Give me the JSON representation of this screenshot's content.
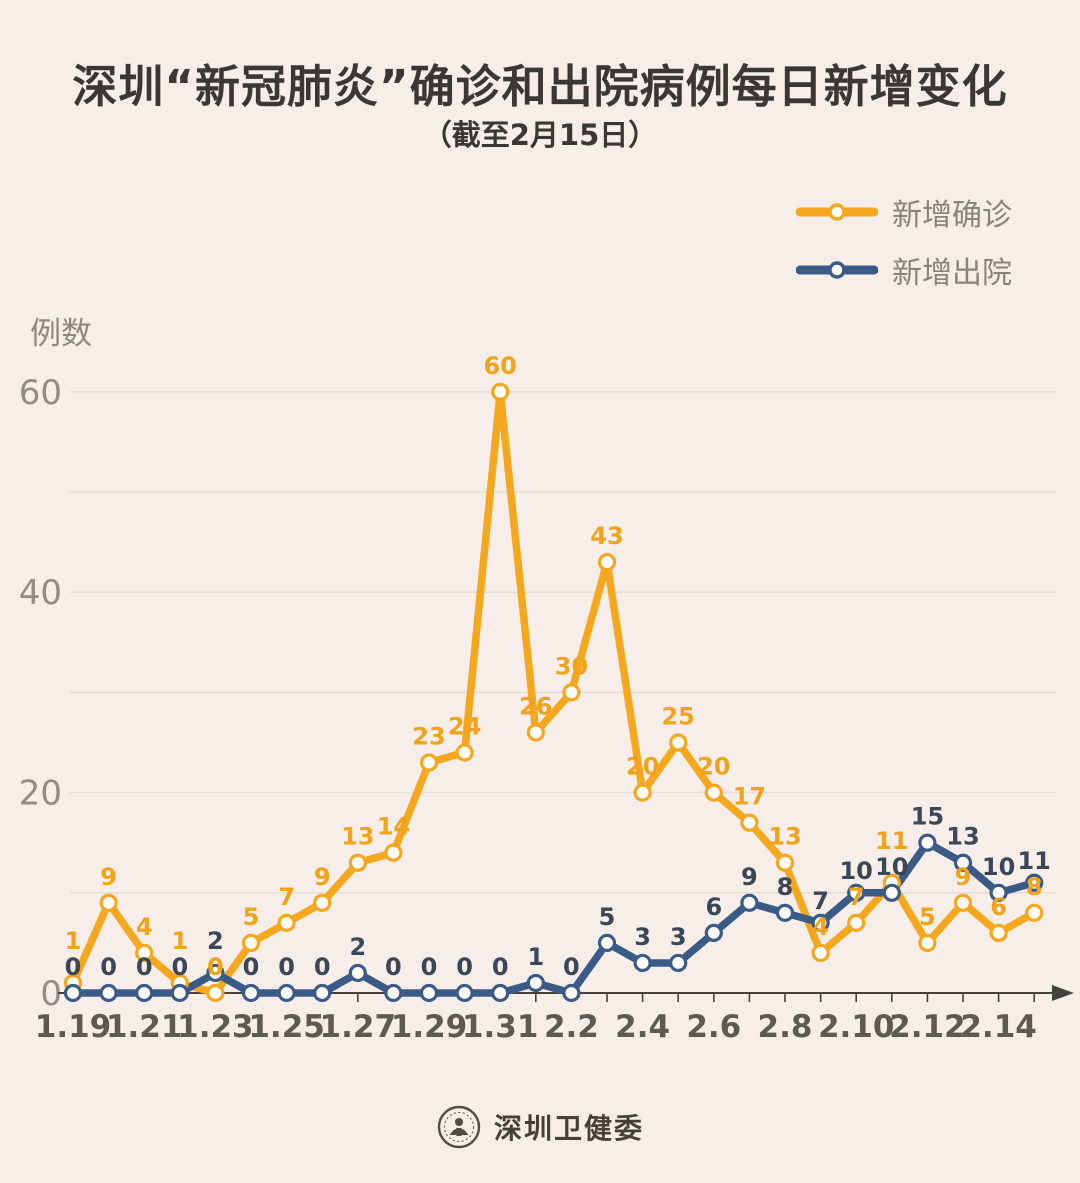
{
  "title": "深圳“新冠肺炎”确诊和出院病例每日新增变化",
  "subtitle": "（截至2月15日）",
  "y_axis_title": "例数",
  "legend": [
    {
      "label": "新增确诊",
      "color": "#f5a71e"
    },
    {
      "label": "新增出院",
      "color": "#3a5a88"
    }
  ],
  "footer": {
    "org_name": "深圳卫健委"
  },
  "colors": {
    "background": "#f7eee9",
    "grid": "#e7ddd6",
    "axis_line": "#45403b",
    "y_tick_text": "#938b84",
    "x_tick_text": "#5f5954",
    "confirmed": "#f5a71e",
    "confirmed_label": "#f2a31c",
    "discharged": "#3a5a88",
    "discharged_label": "#3b4657",
    "marker_fill": "#fffdf8"
  },
  "chart_data": {
    "type": "line",
    "title": "深圳“新冠肺炎”确诊和出院病例每日新增变化",
    "subtitle": "（截至2月15日）",
    "ylabel": "例数",
    "xlabel": "",
    "ylim": [
      0,
      60
    ],
    "yticks": [
      0,
      20,
      40,
      60
    ],
    "grid_step": 10,
    "grid": true,
    "legend_position": "top-right",
    "x_labels_every": 2,
    "categories": [
      "1.19",
      "1.20",
      "1.21",
      "1.22",
      "1.23",
      "1.24",
      "1.25",
      "1.26",
      "1.27",
      "1.28",
      "1.29",
      "1.30",
      "1.31",
      "2.1",
      "2.2",
      "2.3",
      "2.4",
      "2.5",
      "2.6",
      "2.7",
      "2.8",
      "2.9",
      "2.10",
      "2.11",
      "2.12",
      "2.13",
      "2.14",
      "2.15"
    ],
    "series": [
      {
        "name": "新增确诊",
        "color": "#f5a71e",
        "label_color": "#f2a31c",
        "values": [
          1,
          9,
          4,
          1,
          0,
          5,
          7,
          9,
          13,
          14,
          23,
          24,
          60,
          26,
          30,
          43,
          20,
          25,
          20,
          17,
          13,
          4,
          7,
          11,
          5,
          9,
          6,
          8
        ]
      },
      {
        "name": "新增出院",
        "color": "#3a5a88",
        "label_color": "#3b4657",
        "values": [
          0,
          0,
          0,
          0,
          2,
          0,
          0,
          0,
          2,
          0,
          0,
          0,
          0,
          1,
          0,
          5,
          3,
          3,
          6,
          9,
          8,
          7,
          10,
          10,
          15,
          13,
          10,
          11
        ]
      }
    ]
  }
}
